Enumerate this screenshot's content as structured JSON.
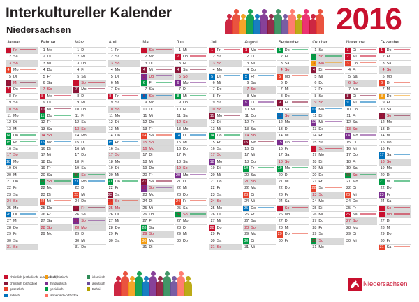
{
  "header": {
    "title": "Interkultureller Kalender",
    "subtitle": "Niedersachsen",
    "year": "2016"
  },
  "months": [
    {
      "name": "Januar",
      "start": 4,
      "days": 31
    },
    {
      "name": "Februar",
      "start": 0,
      "days": 29
    },
    {
      "name": "März",
      "start": 1,
      "days": 31
    },
    {
      "name": "April",
      "start": 4,
      "days": 30
    },
    {
      "name": "Mai",
      "start": 6,
      "days": 31
    },
    {
      "name": "Juni",
      "start": 2,
      "days": 30
    },
    {
      "name": "Juli",
      "start": 4,
      "days": 31
    },
    {
      "name": "August",
      "start": 0,
      "days": 31
    },
    {
      "name": "September",
      "start": 3,
      "days": 30
    },
    {
      "name": "Oktober",
      "start": 5,
      "days": 31
    },
    {
      "name": "November",
      "start": 1,
      "days": 30
    },
    {
      "name": "Dezember",
      "start": 3,
      "days": 31
    }
  ],
  "weekdays": [
    "Mo",
    "Di",
    "Mi",
    "Do",
    "Fr",
    "Sa",
    "So"
  ],
  "holidays": [
    [
      0,
      1
    ],
    [
      2,
      25
    ],
    [
      2,
      28
    ],
    [
      4,
      5
    ],
    [
      4,
      16
    ],
    [
      9,
      3
    ],
    [
      11,
      25
    ],
    [
      11,
      26
    ],
    [
      0,
      6
    ],
    [
      3,
      25
    ]
  ],
  "events": [
    [
      0,
      1,
      "#c8102e"
    ],
    [
      0,
      4,
      "#e8412b"
    ],
    [
      0,
      6,
      "#8a1538"
    ],
    [
      0,
      7,
      "#c8102e"
    ],
    [
      0,
      14,
      "#009a44"
    ],
    [
      0,
      15,
      "#009a44"
    ],
    [
      0,
      18,
      "#0072bc"
    ],
    [
      0,
      26,
      "#0072bc"
    ],
    [
      1,
      8,
      "#c8102e"
    ],
    [
      1,
      10,
      "#8a1538"
    ],
    [
      1,
      11,
      "#009a44"
    ],
    [
      1,
      15,
      "#0072bc"
    ],
    [
      1,
      21,
      "#009a44"
    ],
    [
      1,
      24,
      "#e8412b"
    ],
    [
      2,
      6,
      "#c8102e"
    ],
    [
      2,
      7,
      "#8a1538"
    ],
    [
      2,
      20,
      "#009a44"
    ],
    [
      2,
      21,
      "#0072bc"
    ],
    [
      2,
      23,
      "#e8412b"
    ],
    [
      2,
      25,
      "#8a1538"
    ],
    [
      2,
      27,
      "#7b2d8e"
    ],
    [
      3,
      8,
      "#c8102e"
    ],
    [
      3,
      15,
      "#0072bc"
    ],
    [
      3,
      21,
      "#009a44"
    ],
    [
      3,
      23,
      "#8a1538"
    ],
    [
      3,
      24,
      "#e8412b"
    ],
    [
      4,
      1,
      "#c8102e"
    ],
    [
      4,
      4,
      "#8a1538"
    ],
    [
      4,
      5,
      "#7b2d8e"
    ],
    [
      4,
      6,
      "#009a44"
    ],
    [
      4,
      8,
      "#0072bc"
    ],
    [
      4,
      14,
      "#e8412b"
    ],
    [
      4,
      21,
      "#8a1538"
    ],
    [
      4,
      22,
      "#7b2d8e"
    ],
    [
      4,
      28,
      "#009a44"
    ],
    [
      4,
      30,
      "#f39c12"
    ],
    [
      5,
      2,
      "#c8102e"
    ],
    [
      5,
      4,
      "#8a1538"
    ],
    [
      5,
      6,
      "#7b2d8e"
    ],
    [
      5,
      8,
      "#009a44"
    ],
    [
      5,
      14,
      "#0072bc"
    ],
    [
      5,
      20,
      "#7b2d8e"
    ],
    [
      5,
      24,
      "#e8412b"
    ],
    [
      5,
      26,
      "#009a44"
    ],
    [
      6,
      1,
      "#c8102e"
    ],
    [
      6,
      5,
      "#0072bc"
    ],
    [
      6,
      11,
      "#8a1538"
    ],
    [
      6,
      14,
      "#009a44"
    ],
    [
      6,
      18,
      "#7b2d8e"
    ],
    [
      6,
      28,
      "#c8102e"
    ],
    [
      7,
      1,
      "#c8102e"
    ],
    [
      7,
      5,
      "#0072bc"
    ],
    [
      7,
      9,
      "#7b2d8e"
    ],
    [
      7,
      15,
      "#8a1538"
    ],
    [
      7,
      19,
      "#009a44"
    ],
    [
      7,
      23,
      "#e8412b"
    ],
    [
      7,
      25,
      "#0072bc"
    ],
    [
      7,
      30,
      "#009a44"
    ],
    [
      8,
      1,
      "#009a44"
    ],
    [
      8,
      5,
      "#e8412b"
    ],
    [
      8,
      9,
      "#8a1538"
    ],
    [
      8,
      11,
      "#0072bc"
    ],
    [
      8,
      15,
      "#7b2d8e"
    ],
    [
      8,
      19,
      "#009a44"
    ],
    [
      8,
      25,
      "#c8102e"
    ],
    [
      8,
      29,
      "#e8412b"
    ],
    [
      9,
      2,
      "#009a44"
    ],
    [
      9,
      3,
      "#f39c12"
    ],
    [
      9,
      4,
      "#8a1538"
    ],
    [
      9,
      10,
      "#0072bc"
    ],
    [
      9,
      12,
      "#7b2d8e"
    ],
    [
      9,
      16,
      "#c8102e"
    ],
    [
      9,
      22,
      "#e8412b"
    ],
    [
      9,
      30,
      "#009a44"
    ],
    [
      10,
      1,
      "#c8102e"
    ],
    [
      10,
      2,
      "#c8102e"
    ],
    [
      10,
      3,
      "#e8412b"
    ],
    [
      10,
      8,
      "#8a1538"
    ],
    [
      10,
      9,
      "#0072bc"
    ],
    [
      10,
      14,
      "#7b2d8e"
    ],
    [
      10,
      20,
      "#009a44"
    ],
    [
      10,
      23,
      "#e8412b"
    ],
    [
      10,
      26,
      "#c8102e"
    ],
    [
      11,
      1,
      "#c8102e"
    ],
    [
      11,
      6,
      "#e8412b"
    ],
    [
      11,
      8,
      "#f39c12"
    ],
    [
      11,
      11,
      "#8a1538"
    ],
    [
      11,
      17,
      "#0072bc"
    ],
    [
      11,
      21,
      "#009a44"
    ],
    [
      11,
      23,
      "#7b2d8e"
    ],
    [
      11,
      25,
      "#c8102e"
    ],
    [
      11,
      26,
      "#c8102e"
    ],
    [
      11,
      31,
      "#e8412b"
    ]
  ],
  "legend": [
    {
      "label": "christlich (katholisch, evangelisch)",
      "color": "#c8102e"
    },
    {
      "label": "christlich (orthodox)",
      "color": "#8a1538"
    },
    {
      "label": "gesetzlich",
      "color": "#e8412b"
    },
    {
      "label": "jüdisch",
      "color": "#0072bc"
    },
    {
      "label": "buddhistisch",
      "color": "#f39c12"
    },
    {
      "label": "hinduistisch",
      "color": "#7b2d8e"
    },
    {
      "label": "yezidisch",
      "color": "#009a44"
    },
    {
      "label": "armenisch-orthodox",
      "color": "#ff6f61"
    },
    {
      "label": "islamisch",
      "color": "#2e8b57"
    },
    {
      "label": "alevitisch",
      "color": "#6b4c9a"
    },
    {
      "label": "Bahai",
      "color": "#b5a300"
    }
  ],
  "brand": {
    "name": "Niedersachsen",
    "logo": "niedersachsen-horse-emblem",
    "accent": "#c8102e"
  },
  "crowd_colors": [
    "#c8102e",
    "#e8412b",
    "#f39c12",
    "#009a44",
    "#0072bc",
    "#7b2d8e",
    "#8a1538",
    "#2e8b57",
    "#6b4c9a",
    "#ff6f61",
    "#b5a300",
    "#e91e63"
  ]
}
